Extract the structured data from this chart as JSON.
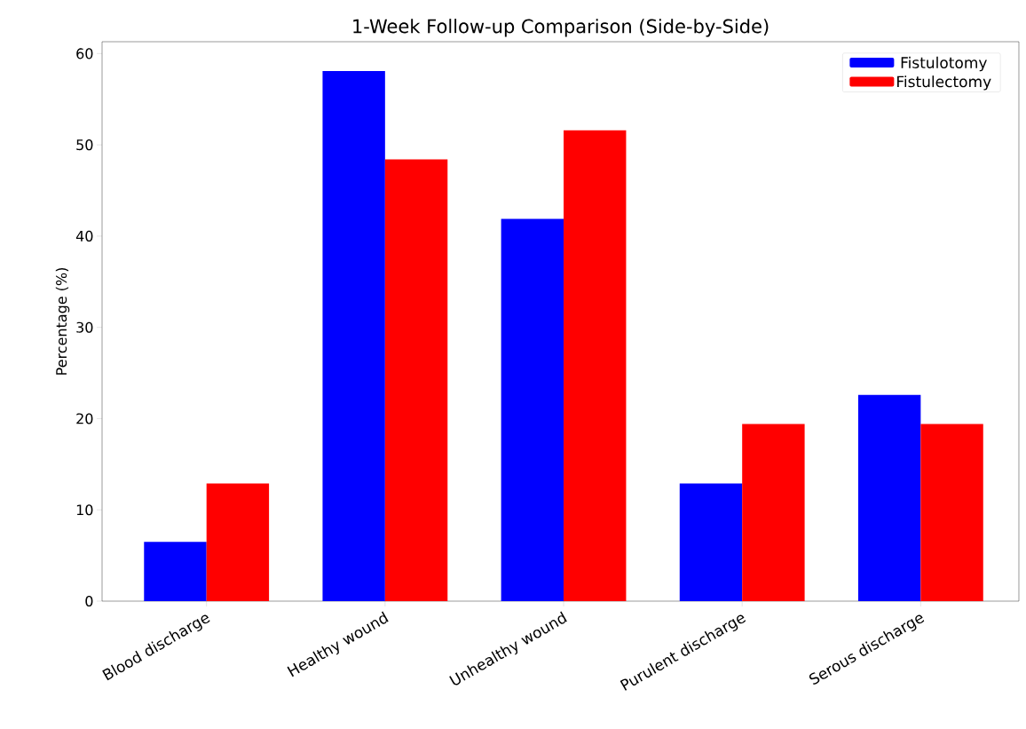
{
  "chart_data": {
    "type": "bar",
    "title": "1-Week Follow-up Comparison (Side-by-Side)",
    "ylabel": "Percentage (%)",
    "categories": [
      "Blood discharge",
      "Healthy wound",
      "Unhealthy wound",
      "Purulent discharge",
      "Serous discharge"
    ],
    "series": [
      {
        "name": "Fistulotomy",
        "color": "#0000ff",
        "values": [
          6.5,
          58.1,
          41.9,
          12.9,
          22.6
        ]
      },
      {
        "name": "Fistulectomy",
        "color": "#ff0000",
        "values": [
          12.9,
          48.4,
          51.6,
          19.4,
          19.4
        ]
      }
    ],
    "ylim": [
      0,
      61.3
    ],
    "yticks": [
      0,
      10,
      20,
      30,
      40,
      50,
      60
    ],
    "legend": "top right"
  }
}
